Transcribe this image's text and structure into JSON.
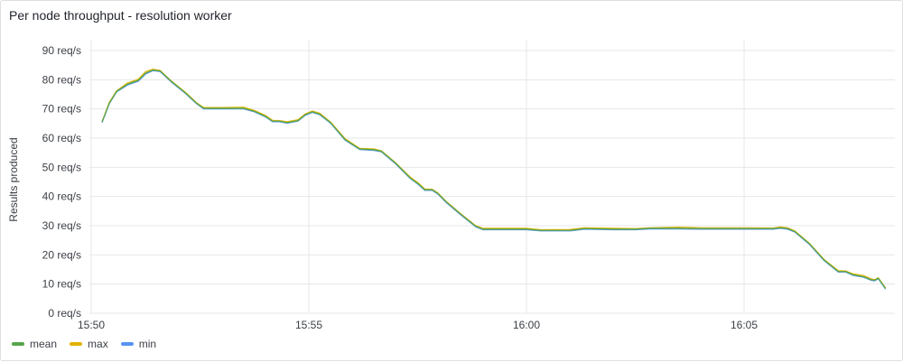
{
  "panel": {
    "title": "Per node throughput - resolution worker"
  },
  "chart_data": {
    "type": "line",
    "title": "Per node throughput - resolution worker",
    "ylabel": "Results produced",
    "xlabel": "",
    "ylim": [
      0,
      90
    ],
    "yticks": [
      0,
      10,
      20,
      30,
      40,
      50,
      60,
      70,
      80,
      90
    ],
    "ytick_labels": [
      "0 req/s",
      "10 req/s",
      "20 req/s",
      "30 req/s",
      "40 req/s",
      "50 req/s",
      "60 req/s",
      "70 req/s",
      "80 req/s",
      "90 req/s"
    ],
    "xlim": [
      "15:50:00",
      "16:08:00"
    ],
    "xticks": [
      "15:50",
      "15:55",
      "16:00",
      "16:05"
    ],
    "grid": true,
    "legend_position": "bottom-left",
    "series": [
      {
        "name": "mean",
        "color": "#56a64b",
        "points": [
          [
            "15:50:15",
            65.5
          ],
          [
            "15:50:25",
            72
          ],
          [
            "15:50:35",
            76
          ],
          [
            "15:50:50",
            78.5
          ],
          [
            "15:51:05",
            79.8
          ],
          [
            "15:51:15",
            82.3
          ],
          [
            "15:51:25",
            83.3
          ],
          [
            "15:51:35",
            83.0
          ],
          [
            "15:51:50",
            79.5
          ],
          [
            "15:52:10",
            75.5
          ],
          [
            "15:52:25",
            72
          ],
          [
            "15:52:35",
            70.2
          ],
          [
            "15:53:00",
            70.2
          ],
          [
            "15:53:30",
            70.2
          ],
          [
            "15:53:45",
            69.2
          ],
          [
            "15:54:00",
            67.5
          ],
          [
            "15:54:10",
            65.8
          ],
          [
            "15:54:20",
            65.8
          ],
          [
            "15:54:30",
            65.3
          ],
          [
            "15:54:45",
            66.0
          ],
          [
            "15:54:55",
            68.0
          ],
          [
            "15:55:05",
            69.0
          ],
          [
            "15:55:15",
            68.2
          ],
          [
            "15:55:30",
            65.3
          ],
          [
            "15:55:50",
            59.5
          ],
          [
            "15:56:10",
            56.3
          ],
          [
            "15:56:30",
            56.0
          ],
          [
            "15:56:40",
            55.5
          ],
          [
            "15:57:00",
            51.3
          ],
          [
            "15:57:20",
            46.3
          ],
          [
            "15:57:30",
            44.5
          ],
          [
            "15:57:40",
            42.3
          ],
          [
            "15:57:50",
            42.3
          ],
          [
            "15:57:58",
            41.0
          ],
          [
            "15:58:10",
            38.0
          ],
          [
            "15:58:30",
            33.8
          ],
          [
            "15:58:50",
            29.8
          ],
          [
            "15:59:00",
            28.8
          ],
          [
            "16:00:00",
            28.8
          ],
          [
            "16:00:20",
            28.4
          ],
          [
            "16:01:00",
            28.4
          ],
          [
            "16:01:20",
            29.0
          ],
          [
            "16:02:00",
            28.8
          ],
          [
            "16:02:30",
            28.8
          ],
          [
            "16:02:50",
            29.1
          ],
          [
            "16:03:30",
            29.1
          ],
          [
            "16:04:00",
            29.0
          ],
          [
            "16:05:00",
            29.0
          ],
          [
            "16:05:40",
            29.0
          ],
          [
            "16:05:50",
            29.3
          ],
          [
            "16:06:00",
            29.0
          ],
          [
            "16:06:10",
            28.0
          ],
          [
            "16:06:30",
            23.8
          ],
          [
            "16:06:50",
            18.3
          ],
          [
            "16:07:10",
            14.3
          ],
          [
            "16:07:20",
            14.3
          ],
          [
            "16:07:30",
            13.2
          ],
          [
            "16:07:45",
            12.5
          ],
          [
            "16:07:55",
            11.5
          ],
          [
            "16:08:00",
            11.3
          ],
          [
            "16:08:05",
            12.0
          ],
          [
            "16:08:15",
            8.5
          ]
        ]
      },
      {
        "name": "max",
        "color": "#e0b400",
        "points": [
          [
            "15:50:15",
            65.7
          ],
          [
            "15:50:25",
            72.3
          ],
          [
            "15:50:35",
            76.2
          ],
          [
            "15:50:50",
            78.9
          ],
          [
            "15:51:05",
            80.2
          ],
          [
            "15:51:15",
            82.8
          ],
          [
            "15:51:25",
            83.6
          ],
          [
            "15:51:35",
            83.2
          ],
          [
            "15:51:50",
            79.7
          ],
          [
            "15:52:10",
            75.7
          ],
          [
            "15:52:25",
            72.2
          ],
          [
            "15:52:35",
            70.5
          ],
          [
            "15:53:00",
            70.5
          ],
          [
            "15:53:30",
            70.6
          ],
          [
            "15:53:45",
            69.5
          ],
          [
            "15:54:00",
            67.8
          ],
          [
            "15:54:10",
            66.1
          ],
          [
            "15:54:20",
            66.0
          ],
          [
            "15:54:30",
            65.6
          ],
          [
            "15:54:45",
            66.3
          ],
          [
            "15:54:55",
            68.3
          ],
          [
            "15:55:05",
            69.3
          ],
          [
            "15:55:15",
            68.5
          ],
          [
            "15:55:30",
            65.5
          ],
          [
            "15:55:50",
            59.8
          ],
          [
            "15:56:10",
            56.5
          ],
          [
            "15:56:30",
            56.3
          ],
          [
            "15:56:40",
            55.7
          ],
          [
            "15:57:00",
            51.5
          ],
          [
            "15:57:20",
            46.6
          ],
          [
            "15:57:30",
            44.8
          ],
          [
            "15:57:40",
            42.6
          ],
          [
            "15:57:50",
            42.5
          ],
          [
            "15:57:58",
            41.2
          ],
          [
            "15:58:10",
            38.2
          ],
          [
            "15:58:30",
            34.0
          ],
          [
            "15:58:50",
            30.0
          ],
          [
            "15:59:00",
            29.1
          ],
          [
            "16:00:00",
            29.1
          ],
          [
            "16:00:20",
            28.6
          ],
          [
            "16:01:00",
            28.7
          ],
          [
            "16:01:20",
            29.3
          ],
          [
            "16:02:00",
            29.1
          ],
          [
            "16:02:30",
            29.0
          ],
          [
            "16:02:50",
            29.3
          ],
          [
            "16:03:30",
            29.5
          ],
          [
            "16:04:00",
            29.3
          ],
          [
            "16:05:00",
            29.3
          ],
          [
            "16:05:40",
            29.2
          ],
          [
            "16:05:50",
            29.6
          ],
          [
            "16:06:00",
            29.3
          ],
          [
            "16:06:10",
            28.2
          ],
          [
            "16:06:30",
            24.0
          ],
          [
            "16:06:50",
            18.5
          ],
          [
            "16:07:10",
            14.6
          ],
          [
            "16:07:20",
            14.5
          ],
          [
            "16:07:30",
            13.5
          ],
          [
            "16:07:45",
            12.9
          ],
          [
            "16:07:55",
            11.8
          ],
          [
            "16:08:00",
            11.5
          ],
          [
            "16:08:05",
            12.2
          ],
          [
            "16:08:15",
            8.7
          ]
        ]
      },
      {
        "name": "min",
        "color": "#5794f2",
        "points": [
          [
            "15:50:15",
            65.3
          ],
          [
            "15:50:25",
            71.8
          ],
          [
            "15:50:35",
            75.8
          ],
          [
            "15:50:50",
            78.2
          ],
          [
            "15:51:05",
            79.5
          ],
          [
            "15:51:15",
            82.0
          ],
          [
            "15:51:25",
            83.1
          ],
          [
            "15:51:35",
            82.8
          ],
          [
            "15:51:50",
            79.3
          ],
          [
            "15:52:10",
            75.3
          ],
          [
            "15:52:25",
            71.8
          ],
          [
            "15:52:35",
            70.0
          ],
          [
            "15:53:00",
            70.0
          ],
          [
            "15:53:30",
            70.0
          ],
          [
            "15:53:45",
            69.0
          ],
          [
            "15:54:00",
            67.3
          ],
          [
            "15:54:10",
            65.6
          ],
          [
            "15:54:20",
            65.6
          ],
          [
            "15:54:30",
            65.1
          ],
          [
            "15:54:45",
            65.8
          ],
          [
            "15:54:55",
            67.8
          ],
          [
            "15:55:05",
            68.8
          ],
          [
            "15:55:15",
            68.0
          ],
          [
            "15:55:30",
            65.1
          ],
          [
            "15:55:50",
            59.3
          ],
          [
            "15:56:10",
            56.1
          ],
          [
            "15:56:30",
            55.8
          ],
          [
            "15:56:40",
            55.3
          ],
          [
            "15:57:00",
            51.1
          ],
          [
            "15:57:20",
            46.1
          ],
          [
            "15:57:30",
            44.3
          ],
          [
            "15:57:40",
            42.1
          ],
          [
            "15:57:50",
            42.1
          ],
          [
            "15:57:58",
            40.8
          ],
          [
            "15:58:10",
            37.8
          ],
          [
            "15:58:30",
            33.6
          ],
          [
            "15:58:50",
            29.6
          ],
          [
            "15:59:00",
            28.6
          ],
          [
            "16:00:00",
            28.6
          ],
          [
            "16:00:20",
            28.2
          ],
          [
            "16:01:00",
            28.2
          ],
          [
            "16:01:20",
            28.8
          ],
          [
            "16:02:00",
            28.6
          ],
          [
            "16:02:30",
            28.6
          ],
          [
            "16:02:50",
            28.9
          ],
          [
            "16:03:30",
            28.9
          ],
          [
            "16:04:00",
            28.8
          ],
          [
            "16:05:00",
            28.8
          ],
          [
            "16:05:40",
            28.8
          ],
          [
            "16:05:50",
            29.1
          ],
          [
            "16:06:00",
            28.8
          ],
          [
            "16:06:10",
            27.8
          ],
          [
            "16:06:30",
            23.6
          ],
          [
            "16:06:50",
            18.1
          ],
          [
            "16:07:10",
            14.1
          ],
          [
            "16:07:20",
            14.1
          ],
          [
            "16:07:30",
            13.0
          ],
          [
            "16:07:45",
            12.3
          ],
          [
            "16:07:55",
            11.3
          ],
          [
            "16:08:00",
            11.1
          ],
          [
            "16:08:05",
            11.8
          ],
          [
            "16:08:15",
            8.3
          ]
        ]
      }
    ]
  }
}
